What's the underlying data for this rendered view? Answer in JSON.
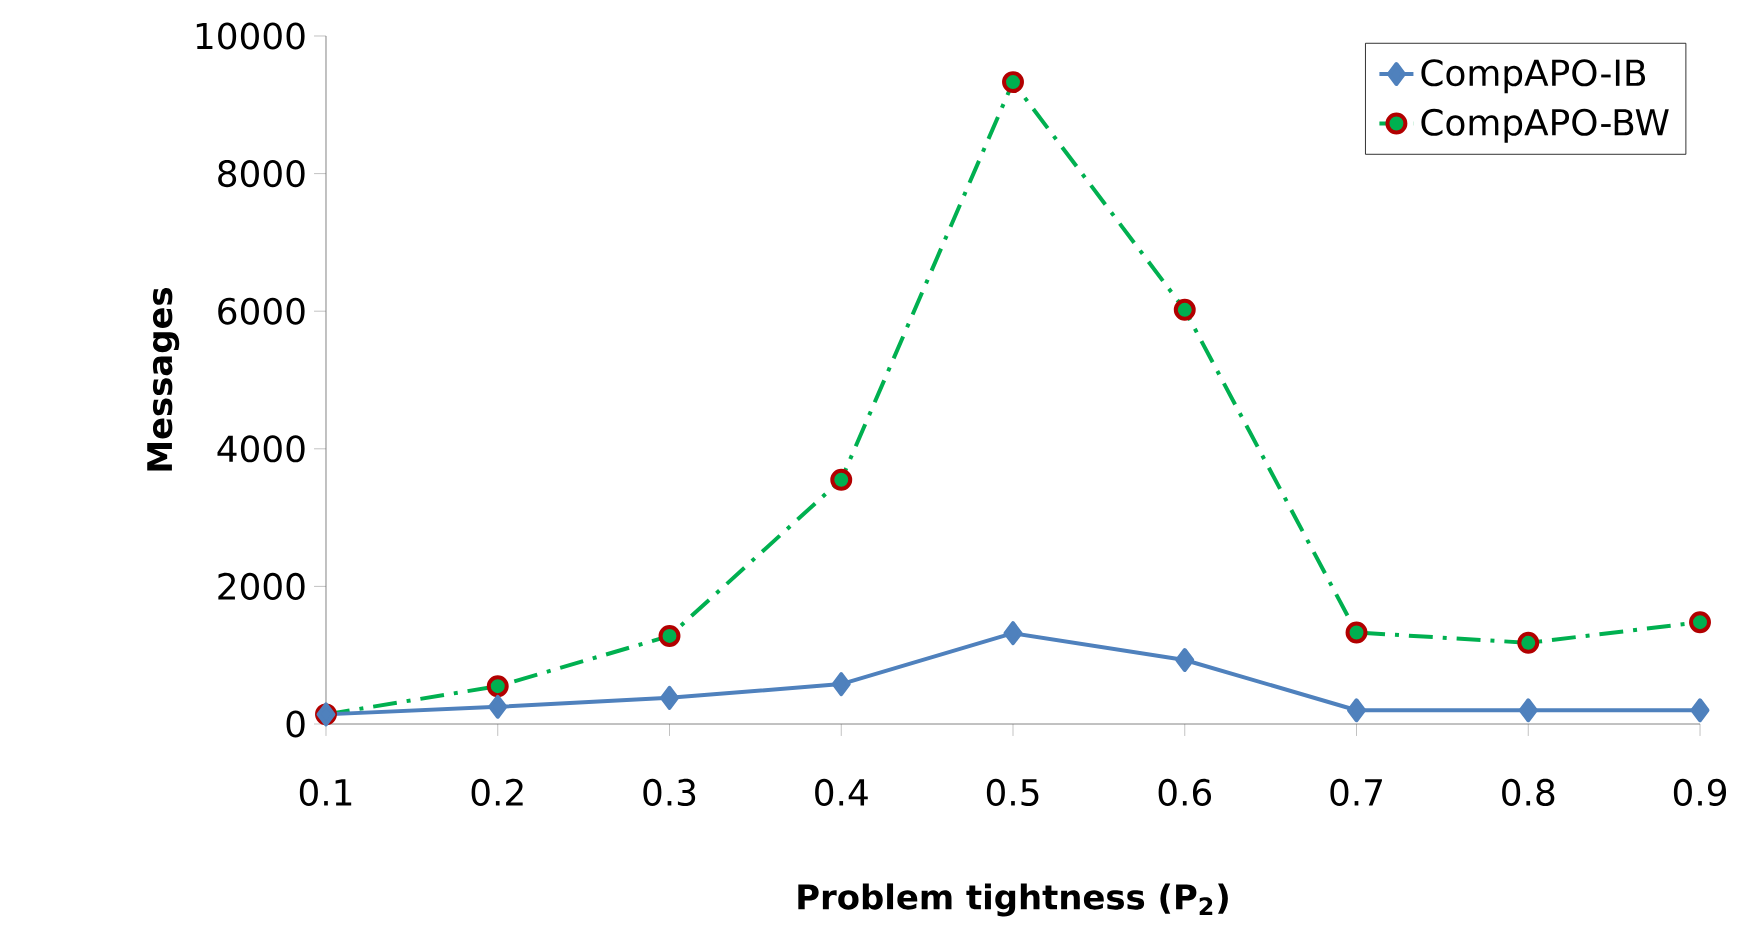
{
  "chart_data": {
    "type": "line",
    "xlabel": "Problem tightness (P$_{2}$)",
    "ylabel": "Messages",
    "x": [
      0.1,
      0.2,
      0.3,
      0.4,
      0.5,
      0.6,
      0.7,
      0.8,
      0.9
    ],
    "xlim": [
      0.1,
      0.9
    ],
    "xticks": [
      0.1,
      0.2,
      0.3,
      0.4,
      0.5,
      0.6,
      0.7,
      0.8,
      0.9
    ],
    "ylim": [
      0,
      10000
    ],
    "yticks": [
      0,
      2000,
      4000,
      6000,
      8000,
      10000
    ],
    "grid": false,
    "legend": "top right",
    "series": [
      {
        "name": "CompAPO-IB",
        "color": "#4f81bd",
        "marker": "diamond",
        "line_style": "solid",
        "values": [
          140,
          250,
          380,
          580,
          1320,
          930,
          200,
          200,
          200
        ]
      },
      {
        "name": "CompAPO-BW",
        "color": "#00b050",
        "marker": "circle",
        "line_style": "dashed",
        "values": [
          140,
          550,
          1280,
          3550,
          9330,
          6020,
          1330,
          1180,
          1480
        ]
      }
    ]
  }
}
